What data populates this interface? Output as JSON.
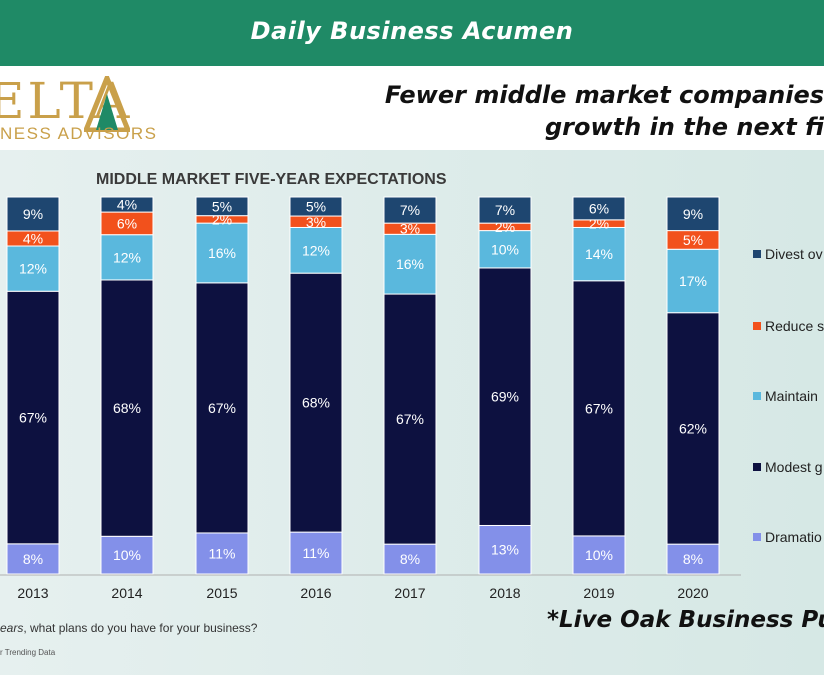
{
  "banner": {
    "title": "Daily Business Acumen"
  },
  "logo": {
    "main": "ELTA",
    "sub": "NESS ADVISORS"
  },
  "headline": {
    "line1": "Fewer middle market companies",
    "line2": "growth in the next fi"
  },
  "source": {
    "question_italic": "ears",
    "question_rest": ", what plans do you have for your business?",
    "footnote": "r Trending Data"
  },
  "credit": "*Live Oak Business Pub",
  "colors": {
    "divest": "#1e4670",
    "reduce": "#f2511c",
    "maintain": "#5ab8dd",
    "modest": "#0d1140",
    "dramatic": "#8390e9",
    "banner": "#1f8a66",
    "logo_gold": "#c9a04a"
  },
  "chart_data": {
    "type": "bar",
    "stacked": true,
    "title": "MIDDLE MARKET FIVE-YEAR EXPECTATIONS",
    "categories": [
      "2013",
      "2014",
      "2015",
      "2016",
      "2017",
      "2018",
      "2019",
      "2020"
    ],
    "series": [
      {
        "name": "Dramatio",
        "key": "dramatic",
        "values": [
          8,
          10,
          11,
          11,
          8,
          13,
          10,
          8
        ],
        "labels": [
          "8%",
          "10%",
          "11%",
          "11%",
          "8%",
          "13%",
          "10%",
          "8%"
        ]
      },
      {
        "name": "Modest g",
        "key": "modest",
        "values": [
          67,
          68,
          67,
          68,
          67,
          69,
          67,
          62
        ],
        "labels": [
          "67%",
          "68%",
          "67%",
          "68%",
          "67%",
          "69%",
          "67%",
          "62%"
        ]
      },
      {
        "name": "Maintain",
        "key": "maintain",
        "values": [
          12,
          12,
          16,
          12,
          16,
          10,
          14,
          17
        ],
        "labels": [
          "12%",
          "12%",
          "16%",
          "12%",
          "16%",
          "10%",
          "14%",
          "17%"
        ]
      },
      {
        "name": "Reduce s",
        "key": "reduce",
        "values": [
          4,
          6,
          2,
          3,
          3,
          2,
          2,
          5
        ],
        "labels": [
          "4%",
          "6%",
          "2%",
          "3%",
          "3%",
          "2%",
          "2%",
          "5%"
        ]
      },
      {
        "name": "Divest ov",
        "key": "divest",
        "values": [
          9,
          4,
          5,
          5,
          7,
          7,
          6,
          9
        ],
        "labels": [
          "9%",
          "4%",
          "5%",
          "5%",
          "7%",
          "7%",
          "6%",
          "9%"
        ]
      }
    ],
    "legend_order": [
      "Divest ov",
      "Reduce s",
      "Maintain",
      "Modest g",
      "Dramatio"
    ],
    "legend_position": "right",
    "grid": false
  }
}
